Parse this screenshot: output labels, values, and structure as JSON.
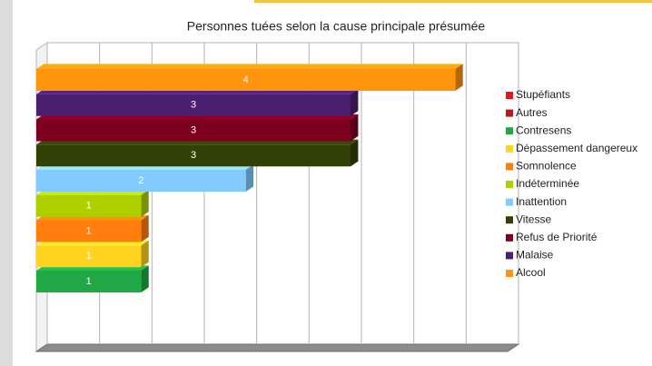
{
  "chart_data": {
    "type": "bar3d_horizontal",
    "title": "Personnes tuées selon la cause principale présumée",
    "categories": [
      "Stupéfiants",
      "Autres",
      "Contresens",
      "Dépassement dangereux",
      "Somnolence",
      "Indéterminée",
      "Inattention",
      "Vitesse",
      "Refus de Priorité",
      "Malaise",
      "Alcool"
    ],
    "values": [
      0,
      0,
      1,
      1,
      1,
      1,
      2,
      3,
      3,
      3,
      4
    ],
    "colors": [
      "#e8141b",
      "#c0161b",
      "#1fa843",
      "#ffd320",
      "#ff7e0e",
      "#aecf00",
      "#83caff",
      "#314004",
      "#7e0021",
      "#4b1f6f",
      "#ff950e"
    ],
    "xlim": [
      0,
      4.5
    ],
    "xticks": [
      0,
      0.5,
      1,
      1.5,
      2,
      2.5,
      3,
      3.5,
      4,
      4.5
    ],
    "grid": true,
    "legend": "right"
  }
}
